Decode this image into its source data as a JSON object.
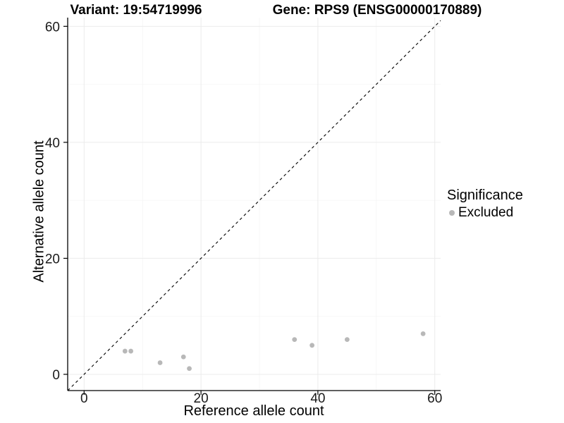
{
  "chart_data": {
    "type": "scatter",
    "title_variant": "Variant: 19:54719996",
    "title_gene": "Gene: RPS9 (ENSG00000170889)",
    "xlabel": "Reference allele count",
    "ylabel": "Alternative allele count",
    "xlim": [
      -2.81,
      61.0
    ],
    "ylim": [
      -2.8,
      61.5
    ],
    "xticks": [
      0,
      20,
      40,
      60
    ],
    "yticks": [
      0,
      20,
      40,
      60
    ],
    "x_minor_ticks": [
      10,
      30,
      50
    ],
    "y_minor_ticks": [
      10,
      30,
      50
    ],
    "grid": true,
    "legend_title": "Significance",
    "legend_position": "right",
    "series": [
      {
        "name": "Excluded",
        "color": "#b8b8b8",
        "points": [
          [
            7,
            4
          ],
          [
            8,
            4
          ],
          [
            13,
            2
          ],
          [
            17,
            3
          ],
          [
            18,
            1
          ],
          [
            36,
            6
          ],
          [
            39,
            5
          ],
          [
            45,
            6
          ],
          [
            58,
            7
          ]
        ]
      }
    ],
    "reference_line": {
      "kind": "identity",
      "style": "dashed",
      "color": "#111111"
    },
    "colors": {
      "grid_major": "#ebebeb",
      "grid_minor": "#f5f5f5",
      "axis_line": "#000000",
      "tick_label": "#1a1a1a"
    }
  }
}
